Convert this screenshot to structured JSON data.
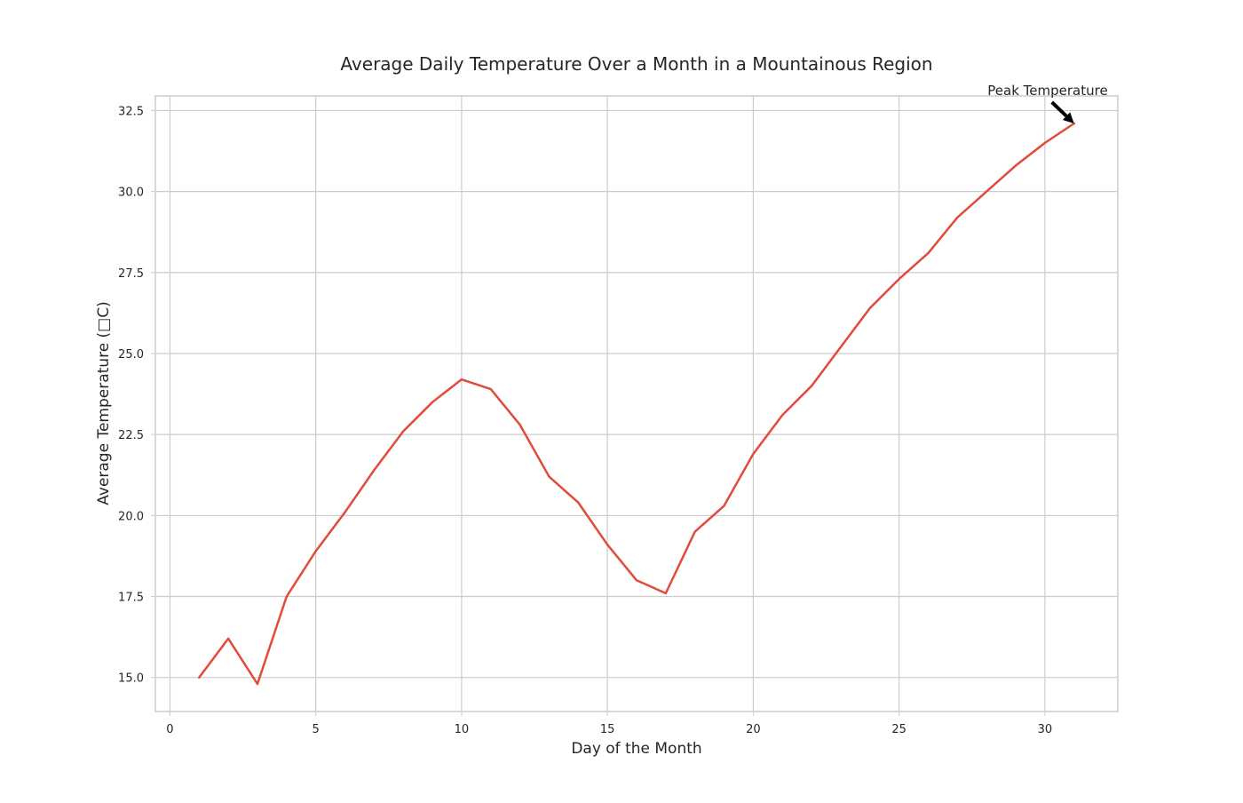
{
  "chart_data": {
    "type": "line",
    "title": "Average Daily Temperature Over a Month in a Mountainous Region",
    "xlabel": "Day of the Month",
    "ylabel": "Average Temperature (□C)",
    "x": [
      1,
      2,
      3,
      4,
      5,
      6,
      7,
      8,
      9,
      10,
      11,
      12,
      13,
      14,
      15,
      16,
      17,
      18,
      19,
      20,
      21,
      22,
      23,
      24,
      25,
      26,
      27,
      28,
      29,
      30,
      31
    ],
    "series": [
      {
        "values": [
          15.0,
          16.2,
          14.8,
          17.5,
          18.9,
          20.1,
          21.4,
          22.6,
          23.5,
          24.2,
          23.9,
          22.8,
          21.2,
          20.4,
          19.1,
          18.0,
          17.6,
          19.5,
          20.3,
          21.9,
          23.1,
          24.0,
          25.2,
          26.4,
          27.3,
          28.1,
          29.2,
          30.0,
          30.8,
          31.5,
          32.1
        ]
      }
    ],
    "xlim": [
      -0.5,
      32.5
    ],
    "ylim": [
      13.95,
      32.95
    ],
    "xticks": [
      0,
      5,
      10,
      15,
      20,
      25,
      30
    ],
    "xtick_labels": [
      "0",
      "5",
      "10",
      "15",
      "20",
      "25",
      "30"
    ],
    "yticks": [
      15.0,
      17.5,
      20.0,
      22.5,
      25.0,
      27.5,
      30.0,
      32.5
    ],
    "ytick_labels": [
      "15.0",
      "17.5",
      "20.0",
      "22.5",
      "25.0",
      "27.5",
      "30.0",
      "32.5"
    ],
    "grid": true,
    "annotation": {
      "text": "Peak Temperature",
      "x": 31,
      "y": 32.1
    },
    "colors": {
      "line": "#e24a3b",
      "grid": "#cccccc",
      "spine": "#cccccc",
      "text": "#262626",
      "arrow": "#000000"
    }
  }
}
